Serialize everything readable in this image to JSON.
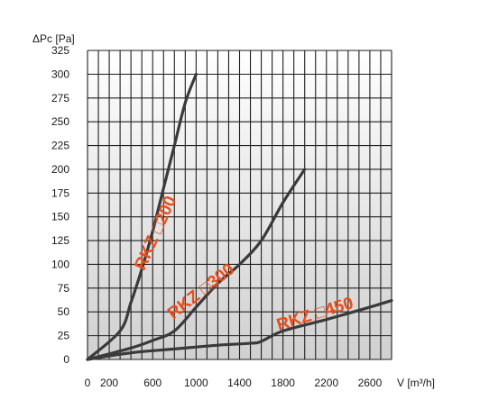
{
  "chart_data": {
    "type": "line",
    "xlabel": "V [m³/h]",
    "ylabel": "ΔPc [Pa]",
    "xlim": [
      0,
      2800
    ],
    "ylim": [
      0,
      325
    ],
    "x_tick_labels": [
      "0",
      "200",
      "600",
      "1000",
      "1400",
      "1800",
      "2200",
      "2600"
    ],
    "x_tick_values": [
      0,
      200,
      600,
      1000,
      1400,
      1800,
      2200,
      2600
    ],
    "y_ticks": [
      0,
      25,
      50,
      75,
      100,
      125,
      150,
      175,
      200,
      225,
      250,
      275,
      300,
      325
    ],
    "x_grid_step": 100,
    "y_grid_step": 25,
    "grid": true,
    "series": [
      {
        "name": "RKZ □200",
        "x": [
          0,
          300,
          400,
          500,
          600,
          700,
          800,
          900,
          1000
        ],
        "y": [
          0,
          30,
          60,
          95,
          135,
          180,
          225,
          270,
          300
        ]
      },
      {
        "name": "RKZ □300",
        "x": [
          0,
          400,
          600,
          800,
          1000,
          1200,
          1400,
          1600,
          1800,
          2000
        ],
        "y": [
          0,
          12,
          20,
          30,
          55,
          80,
          100,
          125,
          165,
          200
        ]
      },
      {
        "name": "RKZ □450",
        "x": [
          0,
          400,
          800,
          1200,
          1500,
          1600,
          1800,
          2200,
          2600,
          2800
        ],
        "y": [
          0,
          7,
          11,
          15,
          17,
          19,
          30,
          42,
          55,
          62
        ]
      }
    ]
  },
  "colors": {
    "curve": "#3a3a3a",
    "label": "#e84e1b",
    "grid": "#1e1e1e",
    "plot_bg_top": "#ffffff",
    "plot_bg_bottom": "#cfcfcf"
  }
}
